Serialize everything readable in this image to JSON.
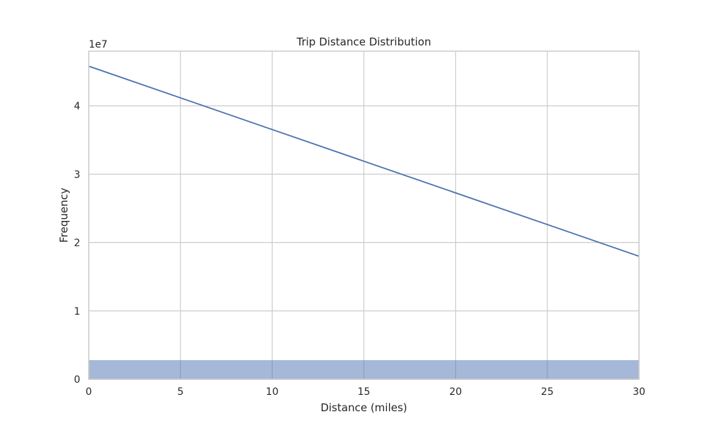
{
  "chart_data": {
    "type": "line",
    "title": "Trip Distance Distribution",
    "xlabel": "Distance (miles)",
    "ylabel": "Frequency",
    "y_offset_label": "1e7",
    "xlim": [
      0,
      30
    ],
    "ylim": [
      0,
      4.8
    ],
    "x_ticks": [
      0,
      5,
      10,
      15,
      20,
      25,
      30
    ],
    "x_tick_labels": [
      "0",
      "5",
      "10",
      "15",
      "20",
      "25",
      "30"
    ],
    "y_ticks": [
      0,
      1,
      2,
      3,
      4
    ],
    "y_tick_labels": [
      "0",
      "1",
      "2",
      "3",
      "4"
    ],
    "grid": true,
    "series": [
      {
        "kind": "line",
        "x": [
          0,
          30
        ],
        "y": [
          4.58,
          1.8
        ],
        "color": "#4c72b0"
      },
      {
        "kind": "histogram",
        "bins": [
          [
            0,
            30
          ]
        ],
        "values": [
          0.28
        ],
        "color": "#4c72b0",
        "opacity": 0.5
      }
    ]
  }
}
